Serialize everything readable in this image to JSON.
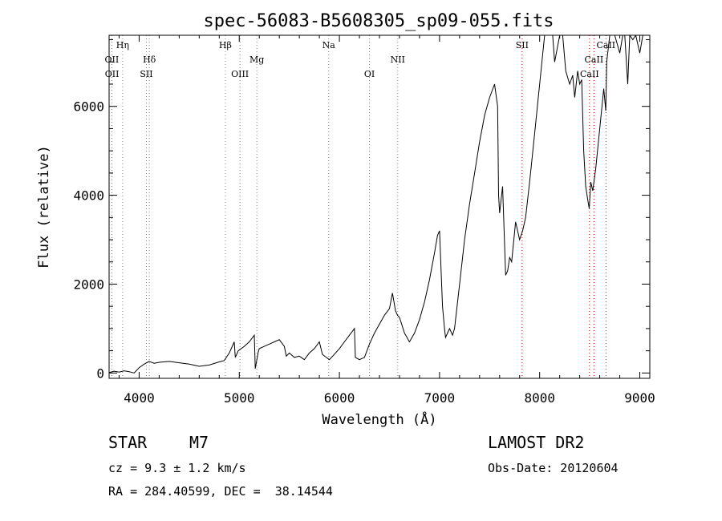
{
  "chart_data": {
    "type": "line",
    "title": "spec-56083-B5608305_sp09-055.fits",
    "xlabel": "Wavelength (Å)",
    "ylabel": "Flux (relative)",
    "xlim": [
      3700,
      9100
    ],
    "ylim": [
      -120,
      7600
    ],
    "xticks": [
      4000,
      5000,
      6000,
      7000,
      8000,
      9000
    ],
    "yticks": [
      0,
      2000,
      4000,
      6000
    ],
    "xtick_labels": [
      "4000",
      "5000",
      "6000",
      "7000",
      "8000",
      "9000"
    ],
    "ytick_labels": [
      "0",
      "2000",
      "4000",
      "6000"
    ],
    "grid": false,
    "series": [
      {
        "x": [
          3700,
          3750,
          3800,
          3850,
          3900,
          3950,
          4000,
          4050,
          4100,
          4150,
          4200,
          4300,
          4400,
          4500,
          4600,
          4700,
          4800,
          4850,
          4900,
          4950,
          4960,
          4990,
          5050,
          5100,
          5150,
          5160,
          5190,
          5200,
          5250,
          5300,
          5350,
          5400,
          5450,
          5470,
          5500,
          5550,
          5600,
          5650,
          5700,
          5750,
          5800,
          5830,
          5870,
          5900,
          5950,
          6000,
          6050,
          6100,
          6150,
          6160,
          6200,
          6250,
          6300,
          6350,
          6400,
          6450,
          6500,
          6530,
          6560,
          6580,
          6600,
          6650,
          6700,
          6750,
          6800,
          6850,
          6900,
          6950,
          6980,
          7000,
          7030,
          7050,
          7060,
          7100,
          7130,
          7150,
          7200,
          7250,
          7300,
          7350,
          7400,
          7450,
          7500,
          7550,
          7580,
          7590,
          7600,
          7630,
          7660,
          7680,
          7700,
          7720,
          7760,
          7800,
          7830,
          7860,
          7900,
          7950,
          8000,
          8050,
          8100,
          8130,
          8150,
          8200,
          8230,
          8260,
          8300,
          8330,
          8350,
          8380,
          8400,
          8420,
          8440,
          8460,
          8480,
          8495,
          8510,
          8530,
          8560,
          8600,
          8640,
          8660,
          8670,
          8700,
          8750,
          8800,
          8830,
          8850,
          8880,
          8900,
          8930,
          8960,
          9000,
          9030,
          9060
        ],
        "y": [
          10,
          40,
          20,
          50,
          30,
          0,
          120,
          200,
          260,
          220,
          240,
          260,
          230,
          200,
          150,
          180,
          250,
          280,
          450,
          700,
          350,
          500,
          600,
          700,
          850,
          100,
          480,
          550,
          600,
          650,
          700,
          750,
          600,
          380,
          450,
          350,
          380,
          300,
          450,
          550,
          700,
          420,
          350,
          300,
          420,
          550,
          700,
          850,
          1000,
          350,
          300,
          350,
          650,
          900,
          1100,
          1300,
          1450,
          1800,
          1400,
          1300,
          1250,
          900,
          700,
          900,
          1200,
          1600,
          2100,
          2700,
          3100,
          3200,
          1500,
          1000,
          800,
          1000,
          850,
          1000,
          2000,
          3000,
          3800,
          4500,
          5200,
          5800,
          6200,
          6500,
          6000,
          4000,
          3600,
          4200,
          2200,
          2300,
          2600,
          2500,
          3400,
          3000,
          3200,
          3500,
          4300,
          5400,
          6500,
          7600,
          7600,
          7600,
          7000,
          7600,
          7600,
          6800,
          6500,
          6700,
          6200,
          6800,
          6500,
          6600,
          5000,
          4200,
          3900,
          3700,
          4300,
          4100,
          4600,
          5500,
          6400,
          5900,
          7000,
          7600,
          7600,
          7200,
          7600,
          7600,
          6500,
          7600,
          7500,
          7600,
          7200,
          7600,
          7600
        ]
      }
    ],
    "lines": [
      {
        "name": "Hη",
        "x": 3835,
        "row": 0
      },
      {
        "name": "OII",
        "x": 3727,
        "row": 1
      },
      {
        "name": "OII",
        "x": 3729,
        "row": 2
      },
      {
        "name": "Hδ",
        "x": 4102,
        "row": 1
      },
      {
        "name": "SII",
        "x": 4072,
        "row": 2
      },
      {
        "name": "Hβ",
        "x": 4861,
        "row": 0
      },
      {
        "name": "OIII",
        "x": 5007,
        "row": 2
      },
      {
        "name": "Mg",
        "x": 5175,
        "row": 1
      },
      {
        "name": "Na",
        "x": 5893,
        "row": 0
      },
      {
        "name": "OI",
        "x": 6300,
        "row": 2
      },
      {
        "name": "NII",
        "x": 6583,
        "row": 1
      },
      {
        "name": "SII",
        "x": 7825,
        "row": 0
      },
      {
        "name": "CaII",
        "x": 8498,
        "row": 2
      },
      {
        "name": "CaII",
        "x": 8542,
        "row": 1
      },
      {
        "name": "CaII",
        "x": 8662,
        "row": 0
      }
    ]
  },
  "info": {
    "class_label": "STAR",
    "subclass_label": "M7",
    "survey": "LAMOST DR2",
    "cz": "cz = 9.3 ± 1.2 km/s",
    "obs_date": "Obs-Date: 20120604",
    "coords": "RA = 284.40599, DEC =  38.14544"
  },
  "colors": {
    "spectrum": "#000000",
    "marker_red": "#cc0000",
    "marker_gray": "#888888"
  }
}
